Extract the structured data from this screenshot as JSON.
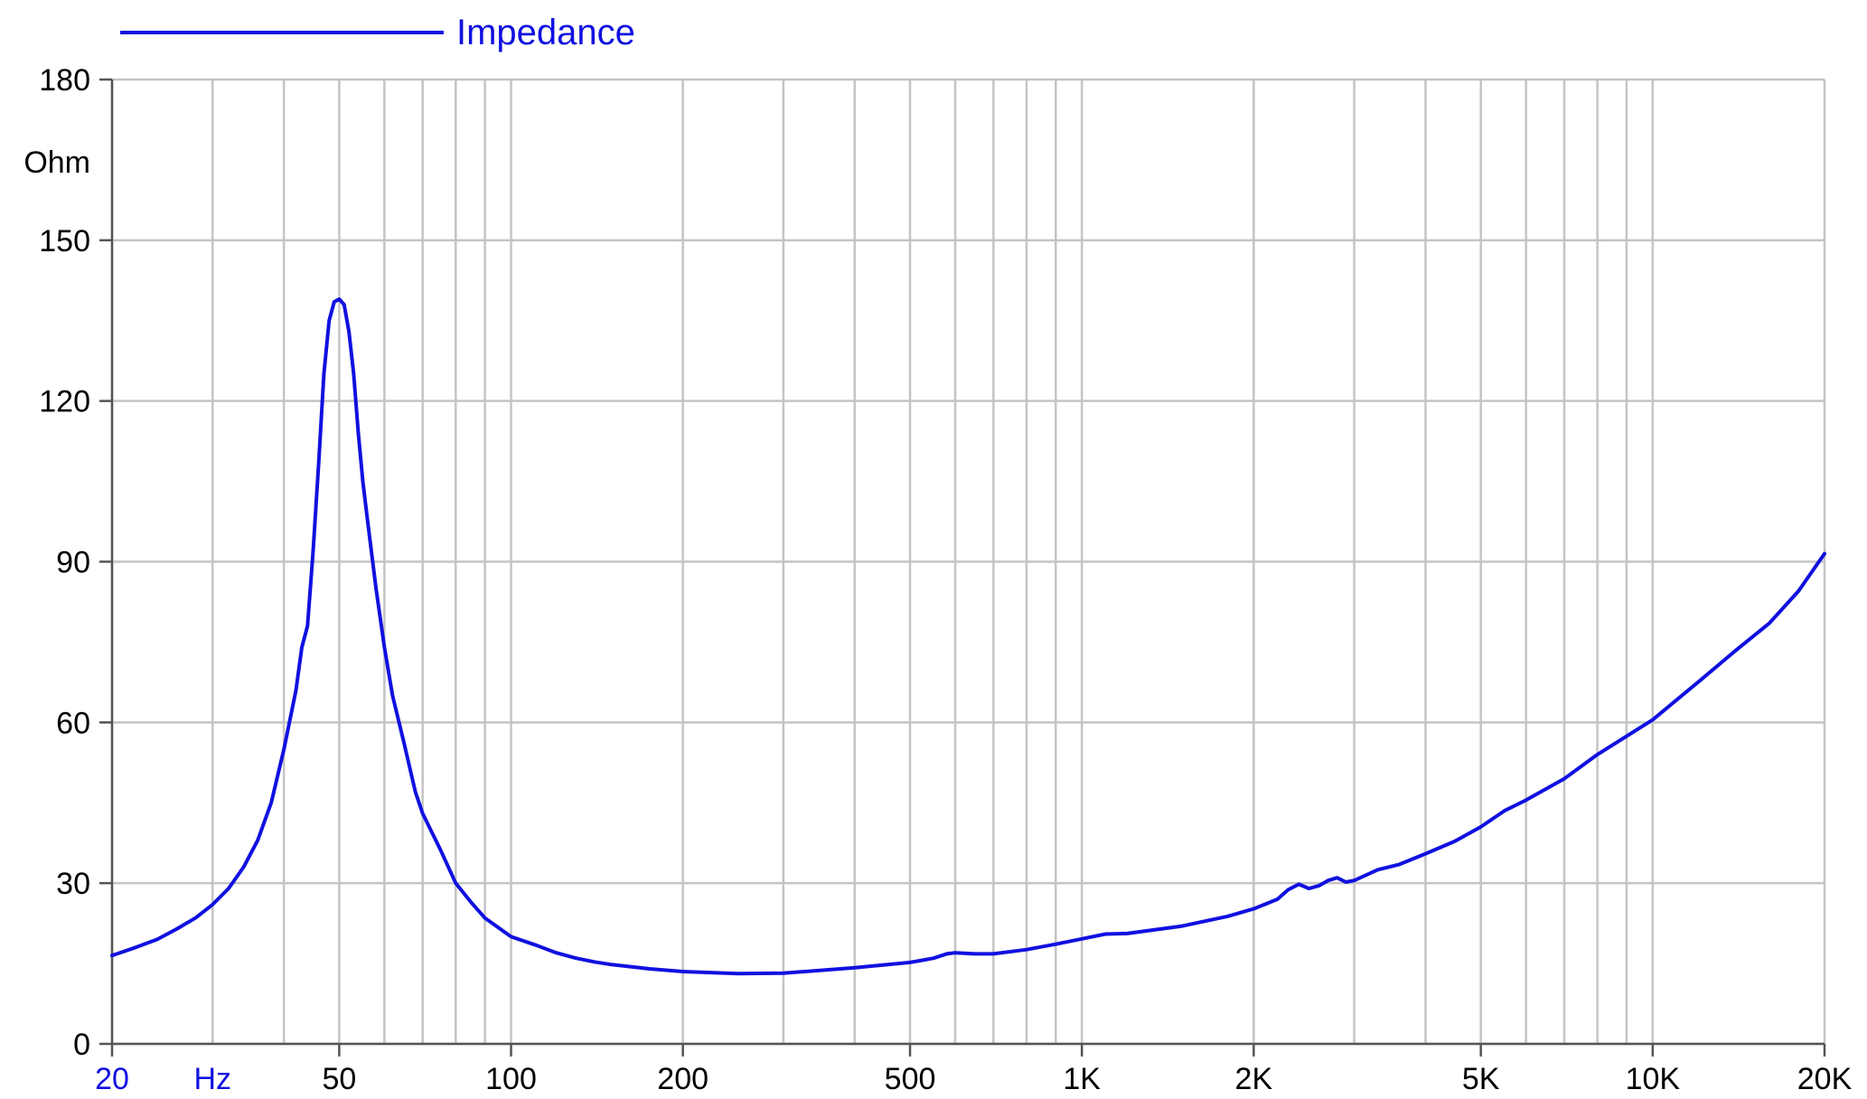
{
  "chart_data": {
    "type": "line",
    "x_scale": "log",
    "xlim": [
      20,
      20000
    ],
    "ylim": [
      0,
      180
    ],
    "grid": true,
    "legend_position": "top-left",
    "ylabel": "Ohm",
    "xlabel": "Hz",
    "x_ticks": [
      {
        "value": 20,
        "label": "20"
      },
      {
        "value": 50,
        "label": "50"
      },
      {
        "value": 100,
        "label": "100"
      },
      {
        "value": 200,
        "label": "200"
      },
      {
        "value": 500,
        "label": "500"
      },
      {
        "value": 1000,
        "label": "1K"
      },
      {
        "value": 2000,
        "label": "2K"
      },
      {
        "value": 5000,
        "label": "5K"
      },
      {
        "value": 10000,
        "label": "10K"
      },
      {
        "value": 20000,
        "label": "20K"
      }
    ],
    "x_grid": [
      20,
      30,
      40,
      50,
      60,
      70,
      80,
      90,
      100,
      200,
      300,
      400,
      500,
      600,
      700,
      800,
      900,
      1000,
      2000,
      3000,
      4000,
      5000,
      6000,
      7000,
      8000,
      9000,
      10000,
      20000
    ],
    "y_ticks": [
      0,
      30,
      60,
      90,
      120,
      150,
      180
    ],
    "series": [
      {
        "name": "Impedance",
        "color": "#1010e0",
        "x": [
          20,
          22,
          24,
          26,
          28,
          30,
          32,
          34,
          36,
          38,
          40,
          42,
          43,
          44,
          45,
          46,
          47,
          48,
          49,
          50,
          51,
          52,
          53,
          54,
          55,
          56,
          58,
          60,
          62,
          65,
          68,
          70,
          75,
          80,
          85,
          90,
          100,
          110,
          120,
          130,
          140,
          150,
          175,
          200,
          250,
          300,
          400,
          500,
          550,
          580,
          600,
          650,
          700,
          800,
          900,
          1000,
          1100,
          1200,
          1500,
          1800,
          2000,
          2200,
          2300,
          2400,
          2500,
          2600,
          2700,
          2800,
          2900,
          3000,
          3300,
          3600,
          4000,
          4500,
          5000,
          5500,
          6000,
          7000,
          8000,
          10000,
          12000,
          14000,
          16000,
          18000,
          20000
        ],
        "y": [
          16.5,
          18,
          19.5,
          21.5,
          23.5,
          26,
          29,
          33,
          38,
          45,
          55,
          66,
          74,
          78,
          92,
          108,
          125,
          135,
          138.5,
          139,
          138,
          133,
          125,
          114,
          105,
          98,
          85,
          74,
          65,
          56,
          47,
          43,
          36.5,
          30,
          26.5,
          23.5,
          20,
          18.5,
          17,
          16,
          15.3,
          14.8,
          14,
          13.5,
          13.1,
          13.2,
          14.2,
          15.2,
          16,
          16.8,
          17,
          16.8,
          16.8,
          17.6,
          18.6,
          19.6,
          20.5,
          20.6,
          22,
          23.8,
          25.2,
          27,
          28.8,
          29.8,
          29,
          29.5,
          30.5,
          31,
          30.2,
          30.5,
          32.5,
          33.5,
          35.5,
          37.8,
          40.5,
          43.5,
          45.5,
          49.5,
          54,
          60.5,
          67.5,
          73.5,
          78.5,
          84.5,
          91.5
        ]
      }
    ]
  }
}
